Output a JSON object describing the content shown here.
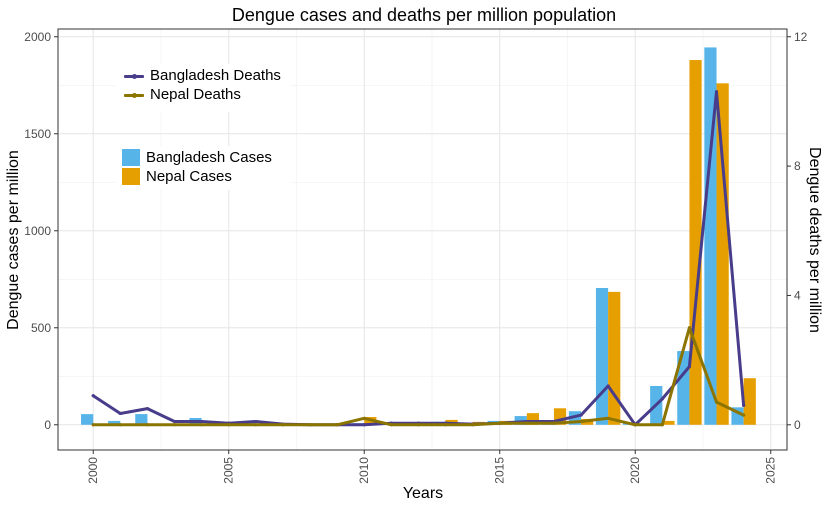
{
  "chart_data": {
    "type": "bar+line",
    "title": "Dengue cases and deaths per million population",
    "xlabel": "Years",
    "ylabel_left": "Dengue cases per million",
    "ylabel_right": "Dengue deaths per million",
    "x_ticks": [
      2000,
      2005,
      2010,
      2015,
      2020,
      2025
    ],
    "y_left_ticks": [
      0,
      500,
      1000,
      1500,
      2000
    ],
    "y_right_ticks": [
      0,
      4,
      8,
      12
    ],
    "xlim": [
      1998.7,
      2025.6
    ],
    "ylim_left": [
      -130,
      2040
    ],
    "ylim_right": [
      -0.78,
      12.24
    ],
    "grid": true,
    "years": [
      2000,
      2001,
      2002,
      2003,
      2004,
      2005,
      2006,
      2007,
      2008,
      2009,
      2010,
      2011,
      2012,
      2013,
      2014,
      2015,
      2016,
      2017,
      2018,
      2019,
      2020,
      2021,
      2022,
      2023,
      2024
    ],
    "bar_series": [
      {
        "name": "Bangladesh Cases",
        "color": "#56B4E9",
        "values": [
          55,
          20,
          55,
          5,
          35,
          5,
          15,
          5,
          8,
          5,
          8,
          8,
          5,
          15,
          10,
          20,
          45,
          20,
          70,
          705,
          8,
          200,
          380,
          1945,
          90
        ]
      },
      {
        "name": "Nepal Cases",
        "color": "#E69F00",
        "values": [
          0,
          0,
          0,
          0,
          0,
          0,
          0,
          0,
          0,
          0,
          40,
          5,
          5,
          25,
          15,
          20,
          60,
          85,
          30,
          685,
          5,
          20,
          1880,
          1760,
          240
        ]
      }
    ],
    "line_series": [
      {
        "name": "Bangladesh Deaths",
        "color": "#483D8B",
        "values": [
          0.9,
          0.35,
          0.5,
          0.1,
          0.1,
          0.05,
          0.1,
          0.02,
          0.0,
          0.0,
          0.0,
          0.05,
          0.05,
          0.05,
          0.02,
          0.05,
          0.1,
          0.1,
          0.3,
          1.2,
          0.0,
          0.8,
          1.8,
          10.3,
          0.6
        ]
      },
      {
        "name": "Nepal Deaths",
        "color": "#8B7500",
        "values": [
          0,
          0,
          0,
          0,
          0,
          0,
          0,
          0,
          0,
          0,
          0.2,
          0,
          0,
          0,
          0,
          0.05,
          0.05,
          0.05,
          0.1,
          0.2,
          0.0,
          0.0,
          3.0,
          0.7,
          0.3
        ]
      }
    ],
    "legend": {
      "lines": [
        "Bangladesh Deaths",
        "Nepal Deaths"
      ],
      "bars": [
        "Bangladesh Cases",
        "Nepal Cases"
      ],
      "placement": "top-left"
    }
  }
}
